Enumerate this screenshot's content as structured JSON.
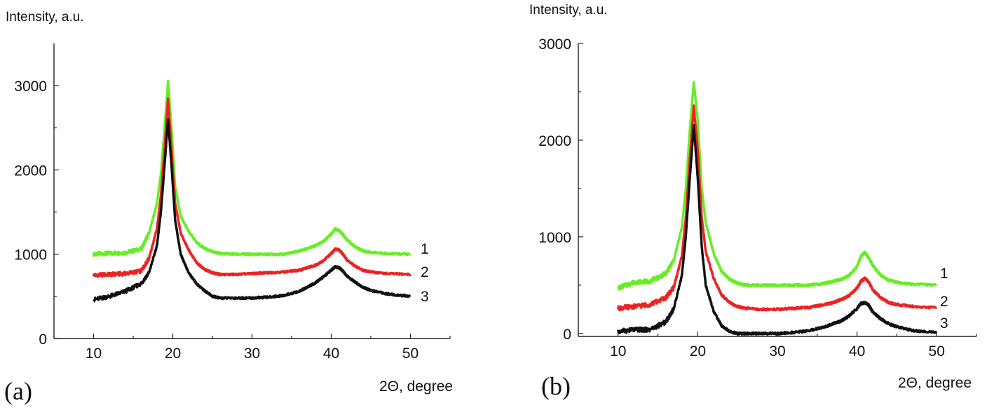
{
  "panels": [
    {
      "letter": "(a)",
      "ylabel": "Intensity, a.u.",
      "xlabel": "2Θ, degree",
      "chart_data": {
        "type": "line",
        "title": "",
        "ylabel": "Intensity, a.u.",
        "xlabel": "2Θ, degree",
        "xlim": [
          5,
          55
        ],
        "ylim": [
          0,
          3500
        ],
        "xticks": [
          10,
          20,
          30,
          40,
          50
        ],
        "yticks": [
          0,
          1000,
          2000,
          3000
        ],
        "grid": false,
        "series": [
          {
            "name": "1",
            "color": "#66ee22",
            "x": [
              10,
              12,
              14,
              16,
              17,
              18,
              18.5,
              19,
              19.4,
              19.8,
              20.3,
              21,
              22,
              23,
              24,
              25,
              26,
              28,
              30,
              32,
              34,
              36,
              37,
              38,
              39,
              40,
              40.5,
              41,
              41.5,
              42,
              43,
              44,
              45,
              47,
              50
            ],
            "y": [
              1000,
              1010,
              1020,
              1060,
              1250,
              1600,
              1950,
              2550,
              3050,
              2550,
              1800,
              1450,
              1270,
              1140,
              1070,
              1030,
              1010,
              1000,
              1000,
              1000,
              1000,
              1040,
              1070,
              1100,
              1150,
              1240,
              1300,
              1280,
              1230,
              1170,
              1090,
              1040,
              1020,
              1010,
              1000
            ]
          },
          {
            "name": "2",
            "color": "#ee2222",
            "x": [
              10,
              12,
              14,
              16,
              17,
              18,
              18.5,
              19,
              19.4,
              19.8,
              20.3,
              21,
              22,
              23,
              24,
              25,
              26,
              28,
              30,
              32,
              34,
              36,
              37,
              38,
              39,
              40,
              40.5,
              41,
              41.5,
              42,
              43,
              44,
              45,
              47,
              50
            ],
            "y": [
              750,
              760,
              770,
              800,
              950,
              1300,
              1700,
              2300,
              2850,
              2300,
              1600,
              1250,
              1050,
              900,
              820,
              780,
              760,
              760,
              770,
              780,
              790,
              810,
              840,
              870,
              920,
              1010,
              1060,
              1050,
              1000,
              930,
              860,
              810,
              790,
              770,
              760
            ]
          },
          {
            "name": "3",
            "color": "#111111",
            "x": [
              10,
              12,
              14,
              16,
              17,
              18,
              18.5,
              19,
              19.4,
              19.8,
              20.3,
              21,
              22,
              23,
              24,
              25,
              26,
              28,
              30,
              32,
              34,
              36,
              37,
              38,
              39,
              40,
              40.5,
              41,
              41.5,
              42,
              43,
              44,
              45,
              47,
              50
            ],
            "y": [
              460,
              500,
              560,
              650,
              780,
              1100,
              1500,
              2100,
              2600,
              2100,
              1400,
              1000,
              780,
              650,
              570,
              500,
              480,
              480,
              480,
              490,
              510,
              560,
              610,
              660,
              730,
              810,
              850,
              840,
              800,
              740,
              670,
              610,
              570,
              530,
              500
            ]
          }
        ]
      }
    },
    {
      "letter": "(b)",
      "ylabel": "Intensity, a.u.",
      "xlabel": "2Θ, degree",
      "chart_data": {
        "type": "line",
        "title": "",
        "ylabel": "Intensity, a.u.",
        "xlabel": "2Θ, degree",
        "xlim": [
          5,
          55
        ],
        "ylim": [
          -30,
          3000
        ],
        "xticks": [
          10,
          20,
          30,
          40,
          50
        ],
        "yticks": [
          0,
          1000,
          2000,
          3000
        ],
        "grid": false,
        "series": [
          {
            "name": "1",
            "color": "#66ee22",
            "x": [
              10,
              12,
              14,
              16,
              17,
              18,
              18.5,
              19,
              19.5,
              20,
              20.5,
              21,
              22,
              23,
              24,
              25,
              26,
              28,
              30,
              32,
              34,
              36,
              37,
              38,
              39,
              40,
              40.5,
              41,
              41.5,
              42,
              43,
              44,
              45,
              47,
              50
            ],
            "y": [
              470,
              530,
              540,
              620,
              760,
              1100,
              1500,
              2100,
              2600,
              2200,
              1500,
              1150,
              830,
              640,
              560,
              520,
              500,
              500,
              500,
              500,
              500,
              520,
              540,
              560,
              600,
              690,
              800,
              840,
              780,
              700,
              600,
              550,
              530,
              510,
              500
            ]
          },
          {
            "name": "2",
            "color": "#ee2222",
            "x": [
              10,
              12,
              14,
              16,
              17,
              18,
              18.5,
              19,
              19.5,
              20,
              20.5,
              21,
              22,
              23,
              24,
              25,
              26,
              28,
              30,
              32,
              34,
              36,
              37,
              38,
              39,
              40,
              40.5,
              41,
              41.5,
              42,
              43,
              44,
              45,
              47,
              50
            ],
            "y": [
              260,
              280,
              300,
              370,
              480,
              800,
              1200,
              1800,
              2350,
              1900,
              1200,
              850,
              570,
              400,
              320,
              280,
              260,
              250,
              250,
              260,
              270,
              300,
              320,
              350,
              390,
              470,
              540,
              570,
              530,
              450,
              370,
              320,
              300,
              280,
              270
            ]
          },
          {
            "name": "3",
            "color": "#111111",
            "x": [
              10,
              12,
              14,
              16,
              17,
              18,
              18.5,
              19,
              19.5,
              20,
              20.5,
              21,
              22,
              23,
              24,
              25,
              26,
              28,
              30,
              32,
              34,
              36,
              37,
              38,
              39,
              40,
              40.5,
              41,
              41.5,
              42,
              43,
              44,
              45,
              47,
              50
            ],
            "y": [
              20,
              40,
              40,
              120,
              260,
              600,
              1000,
              1600,
              2150,
              1600,
              900,
              500,
              230,
              80,
              20,
              0,
              0,
              0,
              0,
              10,
              30,
              70,
              100,
              130,
              180,
              260,
              310,
              320,
              290,
              220,
              150,
              100,
              70,
              30,
              10
            ]
          }
        ]
      }
    }
  ]
}
